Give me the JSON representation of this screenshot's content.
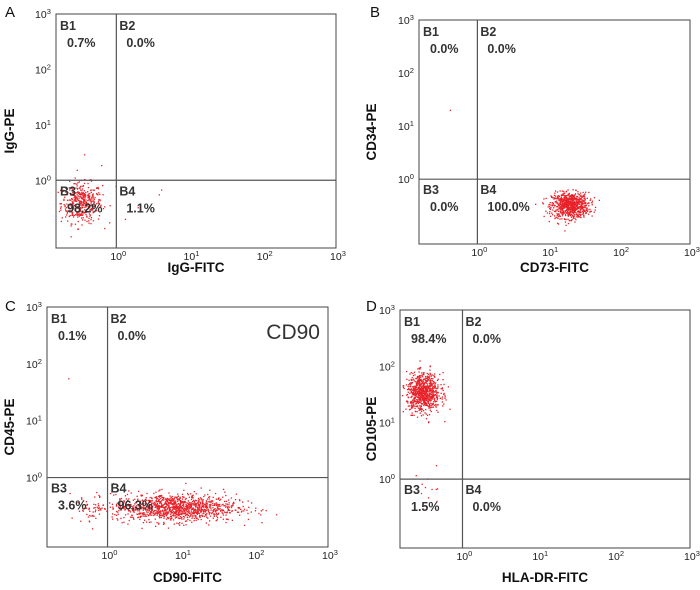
{
  "colors": {
    "events": "#e8222a",
    "gate_line": "#555555",
    "frame": "#444444"
  },
  "chart_data": [
    {
      "type": "scatter",
      "panel": "A",
      "xlabel": "IgG-FITC",
      "ylabel": "IgG-PE",
      "xscale": "log",
      "yscale": "log",
      "xlim": [
        0.15,
        1000
      ],
      "ylim": [
        0.06,
        1000
      ],
      "x_ticks": [
        {
          "base": "10",
          "exp": "0"
        },
        {
          "base": "10",
          "exp": "1"
        },
        {
          "base": "10",
          "exp": "2"
        },
        {
          "base": "10",
          "exp": "3"
        }
      ],
      "y_ticks": [
        {
          "base": "10",
          "exp": "0"
        },
        {
          "base": "10",
          "exp": "1"
        },
        {
          "base": "10",
          "exp": "2"
        },
        {
          "base": "10",
          "exp": "3"
        }
      ],
      "gate": {
        "x": 1,
        "y": 1
      },
      "quadrants": [
        {
          "name": "B1",
          "percent": "0.7%",
          "position": "top-left"
        },
        {
          "name": "B2",
          "percent": "0.0%",
          "position": "top-right"
        },
        {
          "name": "B3",
          "percent": "98.2%",
          "position": "bottom-left"
        },
        {
          "name": "B4",
          "percent": "1.1%",
          "position": "bottom-right"
        }
      ],
      "annotation": "",
      "clusters": [
        {
          "center_x": 0.33,
          "center_y": 0.4,
          "spread_x": 0.14,
          "spread_y": 0.18,
          "count": 400
        },
        {
          "center_x": 2.5,
          "center_y": 0.4,
          "spread_x": 0.3,
          "spread_y": 0.2,
          "count": 5
        },
        {
          "center_x": 0.35,
          "center_y": 2.5,
          "spread_x": 0.3,
          "spread_y": 0.5,
          "count": 4
        }
      ]
    },
    {
      "type": "scatter",
      "panel": "B",
      "xlabel": "CD73-FITC",
      "ylabel": "CD34-PE",
      "xscale": "log",
      "yscale": "log",
      "xlim": [
        0.15,
        1000
      ],
      "ylim": [
        0.06,
        1000
      ],
      "x_ticks": [
        {
          "base": "10",
          "exp": "0"
        },
        {
          "base": "10",
          "exp": "1"
        },
        {
          "base": "10",
          "exp": "2"
        },
        {
          "base": "10",
          "exp": "3"
        }
      ],
      "y_ticks": [
        {
          "base": "10",
          "exp": "0"
        },
        {
          "base": "10",
          "exp": "1"
        },
        {
          "base": "10",
          "exp": "2"
        },
        {
          "base": "10",
          "exp": "3"
        }
      ],
      "gate": {
        "x": 1,
        "y": 1
      },
      "quadrants": [
        {
          "name": "B1",
          "percent": "0.0%",
          "position": "top-left"
        },
        {
          "name": "B2",
          "percent": "0.0%",
          "position": "top-right"
        },
        {
          "name": "B3",
          "percent": "0.0%",
          "position": "bottom-left"
        },
        {
          "name": "B4",
          "percent": "100.0%",
          "position": "bottom-right"
        }
      ],
      "annotation": "",
      "clusters": [
        {
          "center_x": 20,
          "center_y": 0.33,
          "spread_x": 0.13,
          "spread_y": 0.12,
          "count": 800
        },
        {
          "center_x": 0.4,
          "center_y": 20,
          "spread_x": 0.02,
          "spread_y": 0.02,
          "count": 1
        }
      ]
    },
    {
      "type": "scatter",
      "panel": "C",
      "xlabel": "CD90-FITC",
      "ylabel": "CD45-PE",
      "xscale": "log",
      "yscale": "log",
      "xlim": [
        0.15,
        1000
      ],
      "ylim": [
        0.06,
        1000
      ],
      "x_ticks": [
        {
          "base": "10",
          "exp": "0"
        },
        {
          "base": "10",
          "exp": "1"
        },
        {
          "base": "10",
          "exp": "2"
        },
        {
          "base": "10",
          "exp": "3"
        }
      ],
      "y_ticks": [
        {
          "base": "10",
          "exp": "0"
        },
        {
          "base": "10",
          "exp": "1"
        },
        {
          "base": "10",
          "exp": "2"
        },
        {
          "base": "10",
          "exp": "3"
        }
      ],
      "gate": {
        "x": 1,
        "y": 1
      },
      "quadrants": [
        {
          "name": "B1",
          "percent": "0.1%",
          "position": "top-left"
        },
        {
          "name": "B2",
          "percent": "0.0%",
          "position": "top-right"
        },
        {
          "name": "B3",
          "percent": "3.6%",
          "position": "bottom-left"
        },
        {
          "name": "B4",
          "percent": "96.3%",
          "position": "bottom-right"
        }
      ],
      "annotation": "CD90",
      "clusters": [
        {
          "center_x": 8,
          "center_y": 0.3,
          "spread_x": 0.42,
          "spread_y": 0.12,
          "count": 1200
        },
        {
          "center_x": 0.6,
          "center_y": 0.3,
          "spread_x": 0.1,
          "spread_y": 0.12,
          "count": 40
        },
        {
          "center_x": 0.3,
          "center_y": 60,
          "spread_x": 0.02,
          "spread_y": 0.02,
          "count": 1
        }
      ]
    },
    {
      "type": "scatter",
      "panel": "D",
      "xlabel": "HLA-DR-FITC",
      "ylabel": "CD105-PE",
      "xscale": "log",
      "yscale": "log",
      "xlim": [
        0.15,
        1000
      ],
      "ylim": [
        0.06,
        1000
      ],
      "x_ticks": [
        {
          "base": "10",
          "exp": "0"
        },
        {
          "base": "10",
          "exp": "1"
        },
        {
          "base": "10",
          "exp": "2"
        },
        {
          "base": "10",
          "exp": "3"
        }
      ],
      "y_ticks": [
        {
          "base": "10",
          "exp": "0"
        },
        {
          "base": "10",
          "exp": "1"
        },
        {
          "base": "10",
          "exp": "2"
        },
        {
          "base": "10",
          "exp": "3"
        }
      ],
      "gate": {
        "x": 1,
        "y": 1
      },
      "quadrants": [
        {
          "name": "B1",
          "percent": "98.4%",
          "position": "top-left"
        },
        {
          "name": "B2",
          "percent": "0.0%",
          "position": "top-right"
        },
        {
          "name": "B3",
          "percent": "1.5%",
          "position": "bottom-left"
        },
        {
          "name": "B4",
          "percent": "0.0%",
          "position": "bottom-right"
        }
      ],
      "annotation": "",
      "clusters": [
        {
          "center_x": 0.3,
          "center_y": 35,
          "spread_x": 0.11,
          "spread_y": 0.17,
          "count": 800
        },
        {
          "center_x": 0.35,
          "center_y": 0.6,
          "spread_x": 0.1,
          "spread_y": 0.2,
          "count": 12
        }
      ]
    }
  ]
}
